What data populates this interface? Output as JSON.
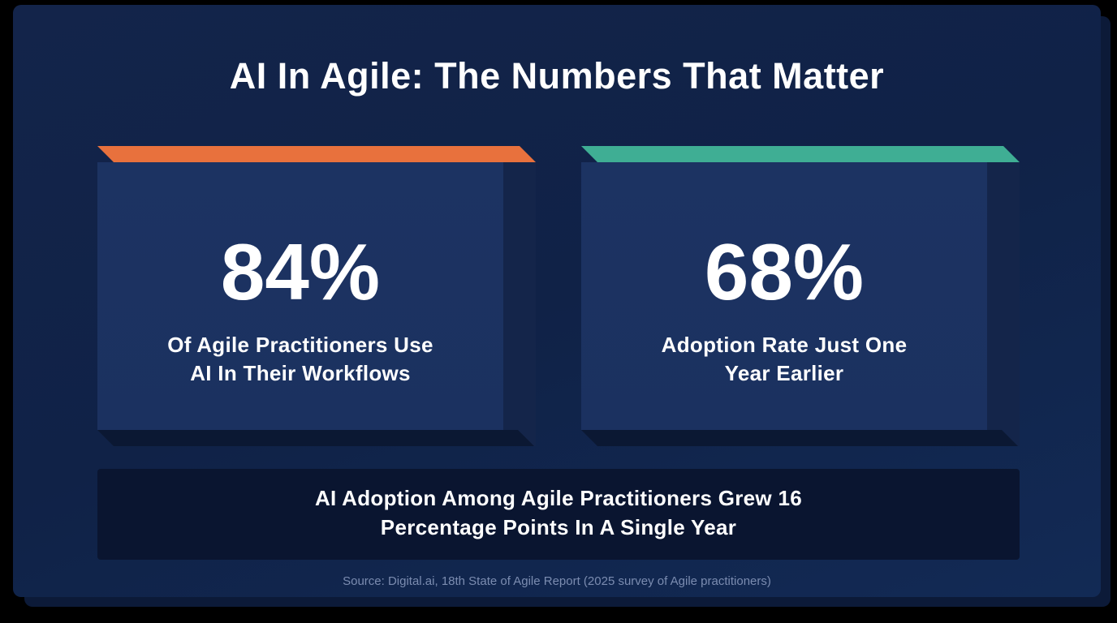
{
  "title": "AI In Agile: The Numbers That Matter",
  "stats": [
    {
      "value": "84%",
      "caption_line1": "Of Agile Practitioners Use",
      "caption_line2": "AI In Their Workflows",
      "accent_color": "#e8713d"
    },
    {
      "value": "68%",
      "caption_line1": "Adoption Rate Just One",
      "caption_line2": "Year Earlier",
      "accent_color": "#3fae94"
    }
  ],
  "summary": {
    "line1": "AI Adoption Among Agile Practitioners Grew 16",
    "line2": "Percentage Points In A Single Year"
  },
  "source": "Source: Digital.ai, 18th State of Agile Report (2025 survey of Agile practitioners)"
}
